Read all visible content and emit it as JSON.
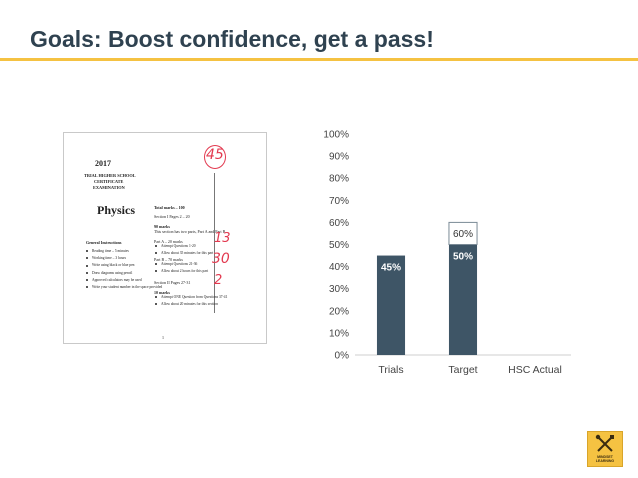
{
  "slide": {
    "title": "Goals: Boost confidence, get a pass!"
  },
  "exam_paper": {
    "year": "2017",
    "heading_lines": [
      "TRIAL HIGHER SCHOOL",
      "CERTIFICATE",
      "EXAMINATION"
    ],
    "subject": "Physics",
    "general_instructions_title": "General Instructions",
    "instructions": [
      "Reading time – 5 minutes",
      "Working time – 3 hours",
      "Write using black or blue pen",
      "Draw diagrams using pencil",
      "Approved calculators may be used",
      "Write your student number in the space provided"
    ],
    "total_marks": "Total marks – 100",
    "section1_title": "Section I  Pages 2 – 20",
    "section1_marks": "90 marks",
    "section1_desc": "This section has two parts, Part A and Part B",
    "partA_title": "Part A – 20 marks",
    "partA_items": [
      "Attempt Questions 1-20",
      "Allow about 35 minutes for this part"
    ],
    "partB_title": "Part B – 70 marks",
    "partB_items": [
      "Attempt Questions 21-36",
      "Allow about 2 hours for this part"
    ],
    "section2_title": "Section II  Pages 27-31",
    "section2_marks": "10 marks",
    "section2_items": [
      "Attempt ONE Question from Questions 37-41",
      "Allow about 20 minutes for this section"
    ],
    "page_number": "1",
    "handwritten": {
      "score": "45",
      "partA": "13",
      "partB": "30",
      "section2": "2"
    }
  },
  "chart_data": {
    "type": "bar",
    "categories": [
      "Trials",
      "Target",
      "HSC Actual"
    ],
    "series": [
      {
        "values": [
          45,
          50,
          null
        ]
      }
    ],
    "data_labels": [
      "45%",
      "50%",
      ""
    ],
    "annotation": {
      "category": "Target",
      "from": 50,
      "to": 60,
      "label": "60%"
    },
    "ylim": [
      0,
      100
    ],
    "yticks": [
      0,
      10,
      20,
      30,
      40,
      50,
      60,
      70,
      80,
      90,
      100
    ],
    "ytick_labels": [
      "0%",
      "10%",
      "20%",
      "30%",
      "40%",
      "50%",
      "60%",
      "70%",
      "80%",
      "90%",
      "100%"
    ],
    "grid": false,
    "legend": "none",
    "bar_color": "#3e5566",
    "annotation_border_color": "#7a8a96"
  },
  "logo": {
    "icon": "crossed-tools-icon",
    "lines": [
      "MINDSET",
      "LEARNING"
    ]
  },
  "colors": {
    "title": "#2f4250",
    "accent": "#f5c242",
    "bar": "#3e5566",
    "handwriting": "#e23a50"
  }
}
